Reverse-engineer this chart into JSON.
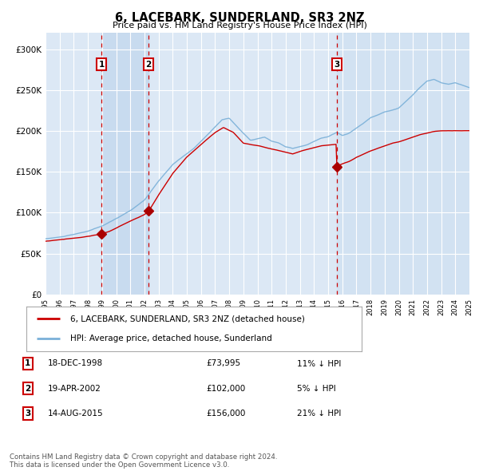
{
  "title": "6, LACEBARK, SUNDERLAND, SR3 2NZ",
  "subtitle": "Price paid vs. HM Land Registry's House Price Index (HPI)",
  "legend_line1": "6, LACEBARK, SUNDERLAND, SR3 2NZ (detached house)",
  "legend_line2": "HPI: Average price, detached house, Sunderland",
  "transactions": [
    {
      "num": 1,
      "date": "18-DEC-1998",
      "price": 73995,
      "pct": "11%",
      "dir": "↓"
    },
    {
      "num": 2,
      "date": "19-APR-2002",
      "price": 102000,
      "pct": "5%",
      "dir": "↓"
    },
    {
      "num": 3,
      "date": "14-AUG-2015",
      "price": 156000,
      "pct": "21%",
      "dir": "↓"
    }
  ],
  "transaction_dates_numeric": [
    1998.96,
    2002.3,
    2015.62
  ],
  "transaction_prices": [
    73995,
    102000,
    156000
  ],
  "ylim": [
    0,
    320000
  ],
  "yticks": [
    0,
    50000,
    100000,
    150000,
    200000,
    250000,
    300000
  ],
  "start_year": 1995,
  "end_year": 2025,
  "background_color": "#ffffff",
  "plot_bg_color": "#dce8f5",
  "grid_color": "#ffffff",
  "hpi_line_color": "#7ab0d8",
  "price_line_color": "#cc0000",
  "marker_color": "#aa0000",
  "vline_color": "#cc0000",
  "footnote": "Contains HM Land Registry data © Crown copyright and database right 2024.\nThis data is licensed under the Open Government Licence v3.0."
}
